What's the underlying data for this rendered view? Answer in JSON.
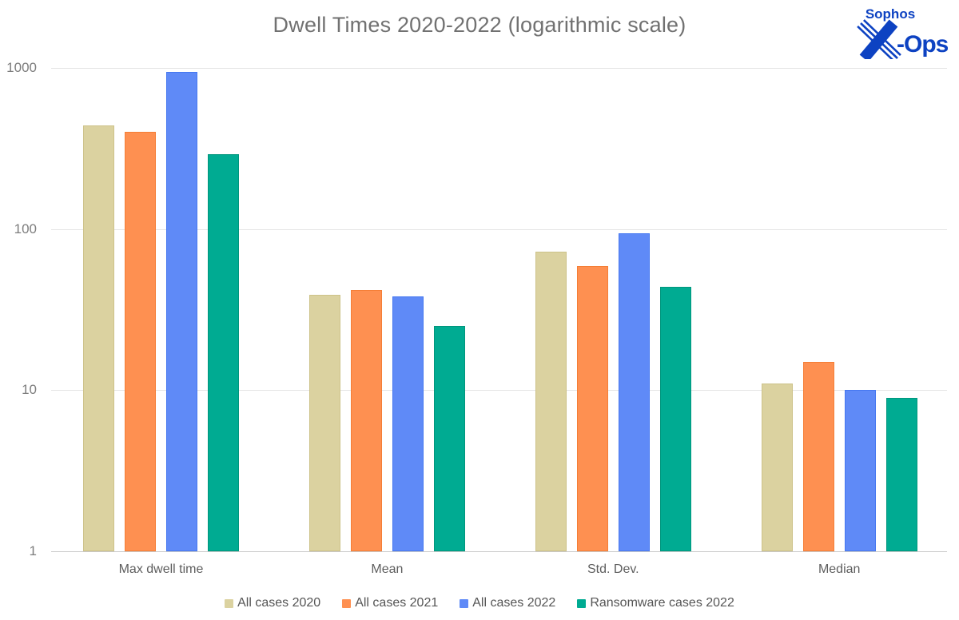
{
  "title": "Dwell Times 2020-2022 (logarithmic scale)",
  "logo": {
    "brand": "Sophos",
    "unit": "-Ops",
    "color": "#0d42c2"
  },
  "chart_data": {
    "type": "bar",
    "title": "Dwell Times 2020-2022 (logarithmic scale)",
    "scale": "logarithmic",
    "grid": "horizontal",
    "legend_position": "bottom",
    "categories": [
      "Max dwell time",
      "Mean",
      "Std. Dev.",
      "Median"
    ],
    "series": [
      {
        "name": "All cases 2020",
        "color": "#dbd2a0",
        "border": "#cdc289",
        "values": [
          439,
          39,
          72,
          11
        ]
      },
      {
        "name": "All cases 2021",
        "color": "#fe9051",
        "border": "#f57e36",
        "values": [
          400,
          42,
          59,
          15
        ]
      },
      {
        "name": "All cases 2022",
        "color": "#5f8af7",
        "border": "#4577f0",
        "values": [
          940,
          38,
          94,
          10
        ]
      },
      {
        "name": "Ransomware cases 2022",
        "color": "#00ab92",
        "border": "#00967d",
        "values": [
          290,
          25,
          44,
          9
        ]
      }
    ],
    "y_axis": {
      "min": 1,
      "max": 1000,
      "ticks": [
        1,
        10,
        100,
        1000
      ],
      "tick_labels": [
        "1",
        "10",
        "100",
        "1000"
      ]
    }
  }
}
